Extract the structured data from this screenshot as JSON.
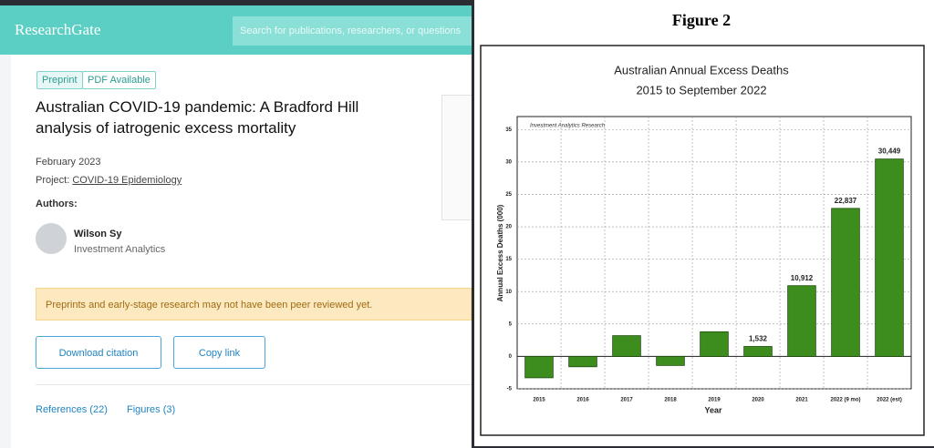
{
  "header": {
    "logo": "ResearchGate",
    "search_placeholder": "Search for publications, researchers, or questions"
  },
  "publication": {
    "badges": [
      "Preprint",
      "PDF Available"
    ],
    "title": "Australian COVID-19 pandemic: A Bradford Hill analysis of iatrogenic excess mortality",
    "date": "February 2023",
    "project_label": "Project:",
    "project": "COVID-19 Epidemiology",
    "authors_label": "Authors:",
    "author_name": "Wilson Sy",
    "author_affiliation": "Investment Analytics",
    "notice": "Preprints and early-stage research may not have been peer reviewed yet.",
    "buttons": [
      "Download citation",
      "Copy link"
    ],
    "tabs": [
      "References (22)",
      "Figures (3)"
    ]
  },
  "figure_label": "Figure 2",
  "chart_data": {
    "type": "bar",
    "title": "Australian Annual Excess Deaths",
    "subtitle": "2015 to September 2022",
    "annotation": "Investment Analytics Research",
    "x_label": "Year",
    "y_label": "Annual Excess Deaths (000)",
    "categories": [
      "2015",
      "2016",
      "2017",
      "2018",
      "2019",
      "2020",
      "2021",
      "2022 (9 mo)",
      "2022 (est)"
    ],
    "values": [
      -3.3,
      -1.6,
      3.2,
      -1.4,
      3.8,
      1.532,
      10.912,
      22.837,
      30.449
    ],
    "value_labels": [
      null,
      null,
      null,
      null,
      null,
      "1,532",
      "10,912",
      "22,837",
      "30,449"
    ],
    "color": "#3d8c1e",
    "ylim": [
      -5,
      37
    ],
    "yticks": [
      -5,
      0,
      5,
      10,
      15,
      20,
      25,
      30,
      35
    ],
    "grid": true
  }
}
